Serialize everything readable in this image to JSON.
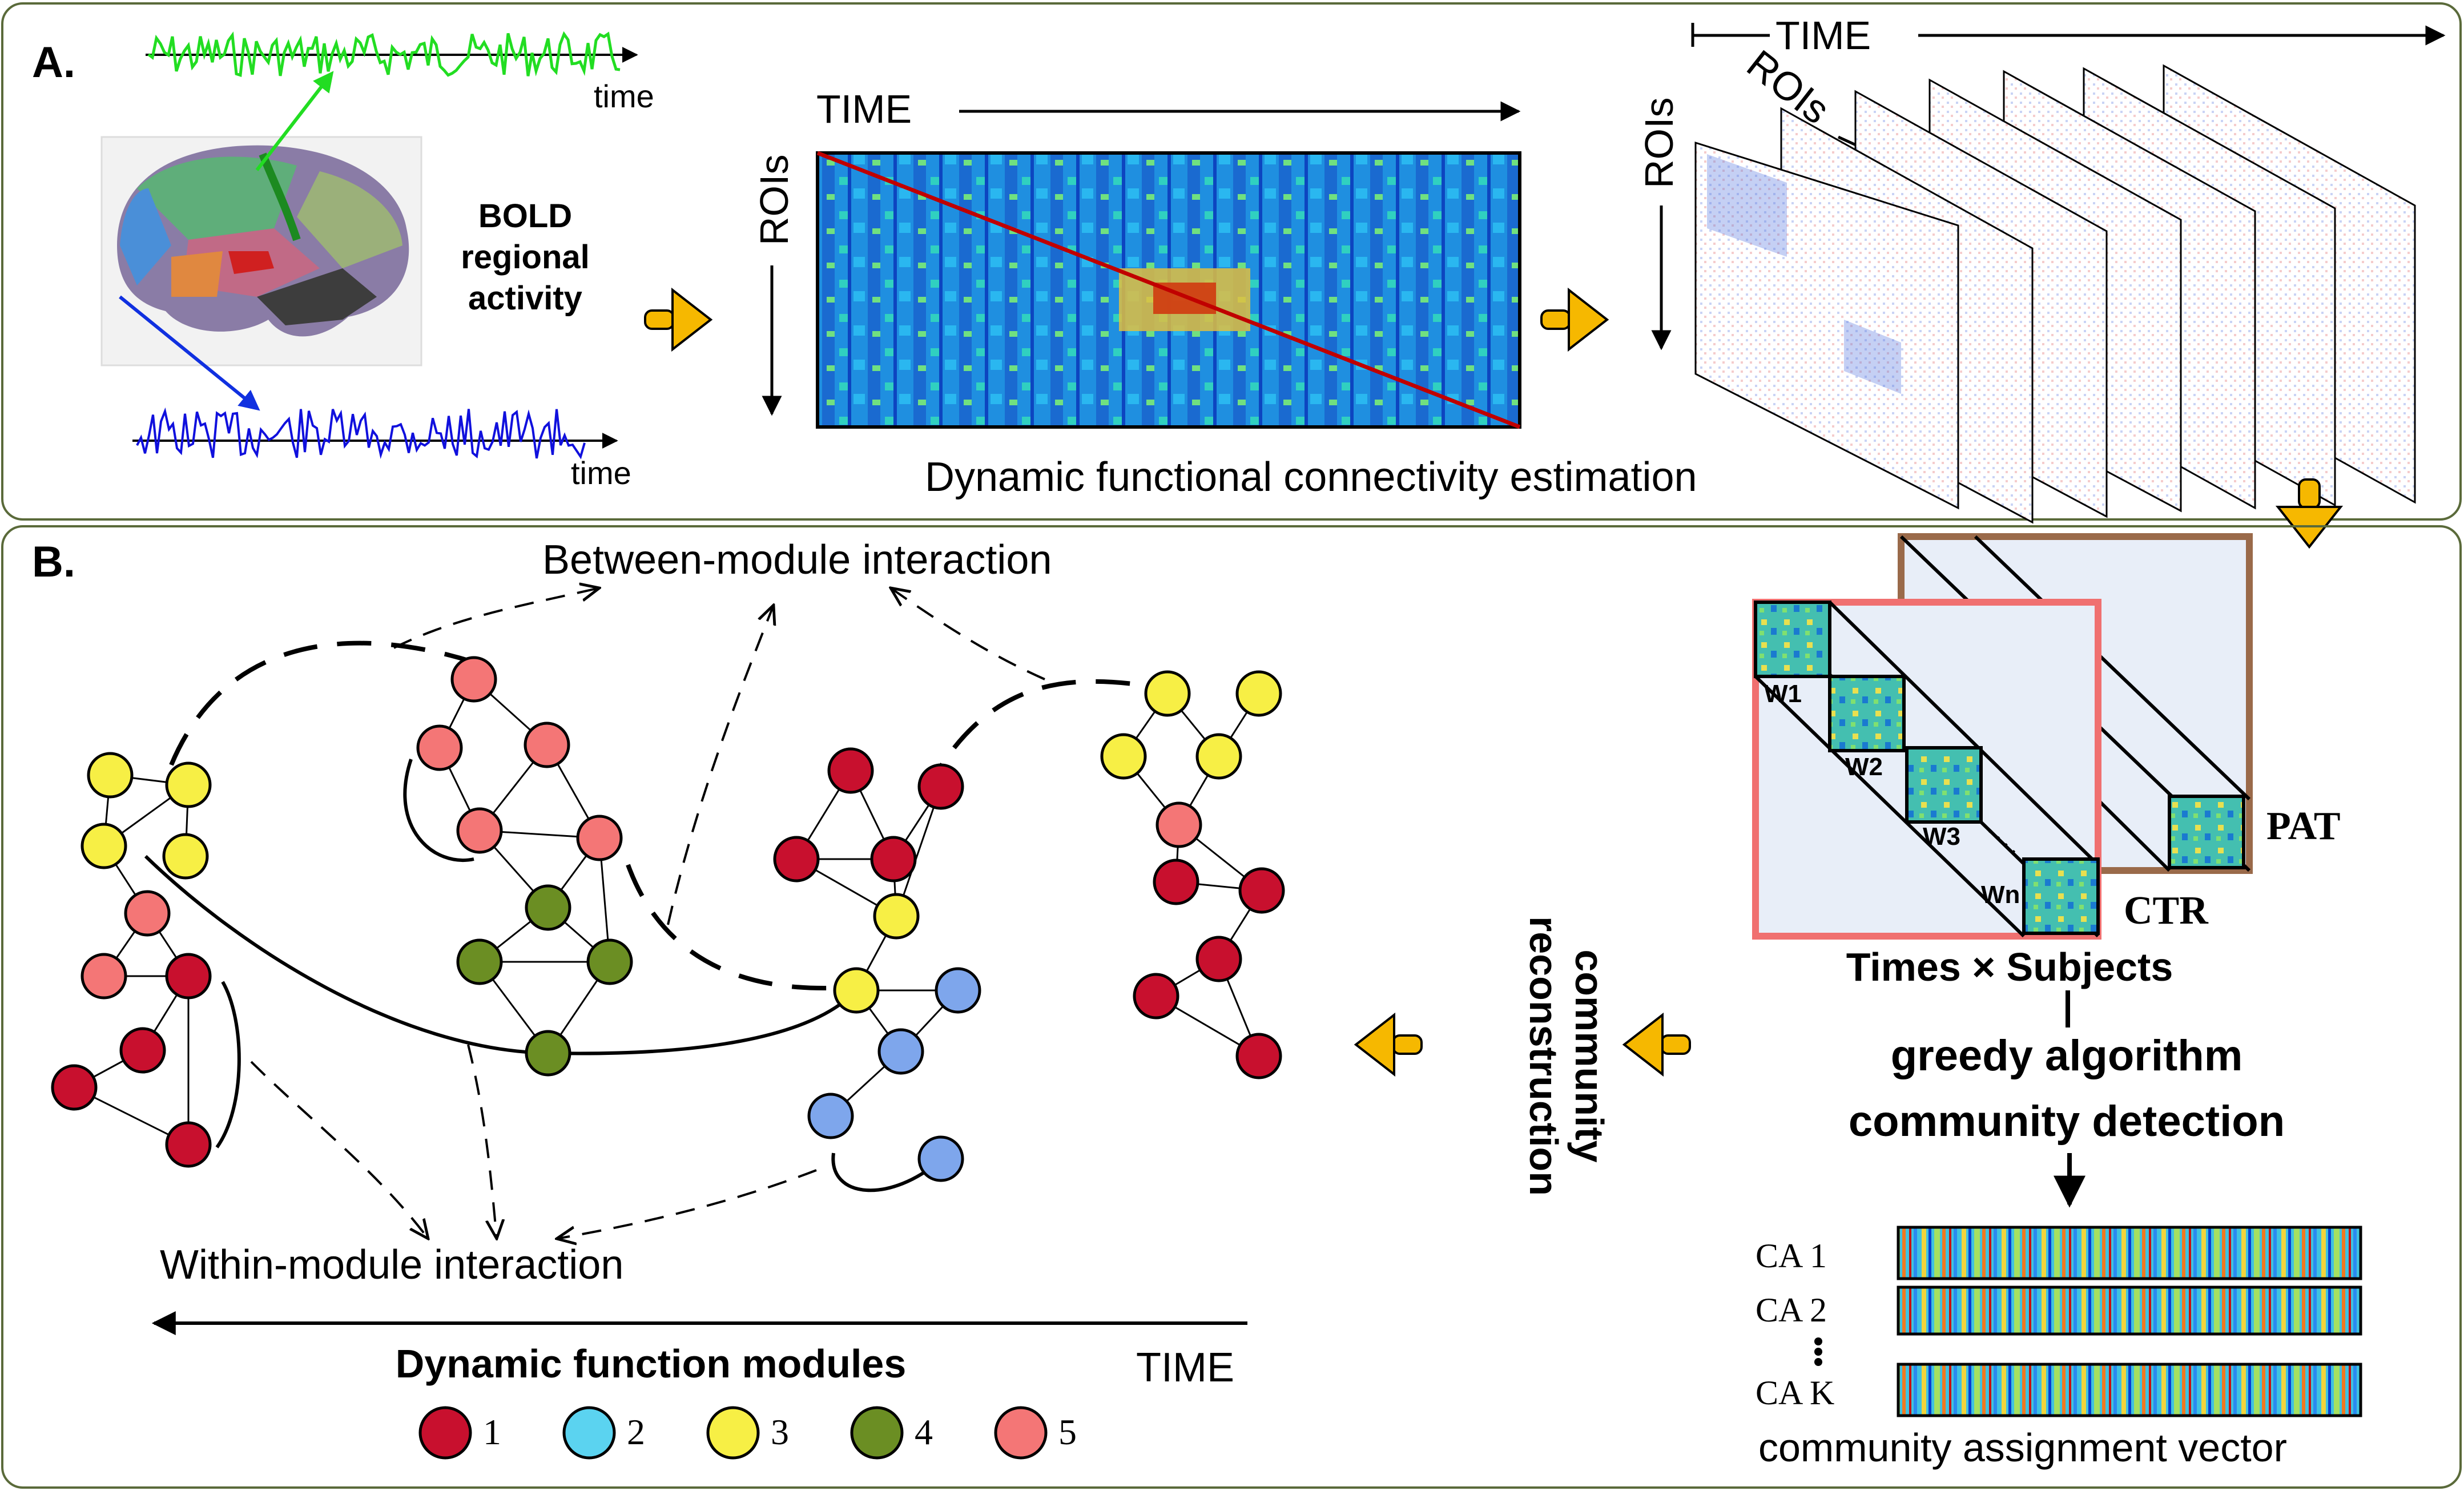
{
  "panel_a": {
    "label": "A.",
    "time_top": "time",
    "time_bottom": "time",
    "bold_line1": "BOLD",
    "bold_line2": "regional",
    "bold_line3": "activity",
    "matrix_time": "TIME",
    "matrix_rois": "ROIs",
    "stack_time": "TIME",
    "stack_rois_vertical": "ROIs",
    "stack_rois_diagonal": "ROIs",
    "caption": "Dynamic functional connectivity estimation"
  },
  "panel_b": {
    "label": "B.",
    "between_label": "Between-module interaction",
    "within_label": "Within-module interaction",
    "time_label": "TIME",
    "modules_title": "Dynamic function modules",
    "legend": [
      {
        "label": "1",
        "color": "#c8102e"
      },
      {
        "label": "2",
        "color": "#5bd3f0"
      },
      {
        "label": "3",
        "color": "#f7ef45"
      },
      {
        "label": "4",
        "color": "#6b8e23"
      },
      {
        "label": "5",
        "color": "#f47676"
      }
    ],
    "community_line1": "community",
    "community_line2": "reconstruction",
    "windows": [
      "W1",
      "W2",
      "W3",
      "Wn"
    ],
    "pat_label": "PAT",
    "ctr_label": "CTR",
    "times_subjects": "Times × Subjects",
    "greedy_line1": "greedy algorithm",
    "greedy_line2": "community detection",
    "ca_labels": [
      "CA 1",
      "CA 2",
      "CA K"
    ],
    "ca_caption": "community assignment vector"
  },
  "colors": {
    "panel_border": "#5a6a3a",
    "arrow_fill": "#f6b800",
    "green_signal": "#22dd22",
    "blue_signal": "#1010dd",
    "ctr_frame": "#f07070",
    "pat_frame": "#9a6a4a"
  }
}
